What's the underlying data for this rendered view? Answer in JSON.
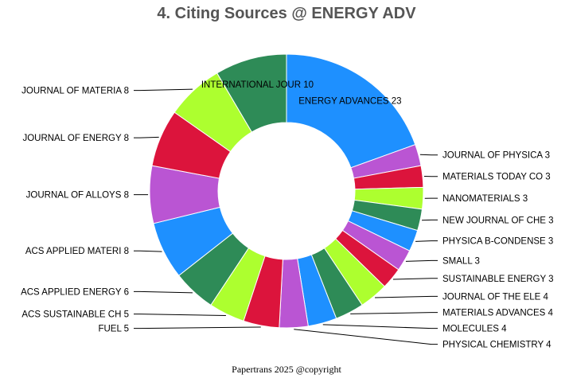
{
  "page": {
    "footer": "Papertrans 2025 @copyright"
  },
  "chart_data": {
    "type": "pie",
    "style": "donut",
    "title": "4. Citing Sources @ ENERGY ADV",
    "slices": [
      {
        "label": "ENERGY ADVANCES",
        "value": 23,
        "color": "#1e90ff"
      },
      {
        "label": "JOURNAL OF PHYSICA",
        "value": 3,
        "color": "#ba55d3"
      },
      {
        "label": "MATERIALS TODAY CO",
        "value": 3,
        "color": "#dc143c"
      },
      {
        "label": "NANOMATERIALS",
        "value": 3,
        "color": "#adff2f"
      },
      {
        "label": "NEW JOURNAL OF CHE",
        "value": 3,
        "color": "#2e8b57"
      },
      {
        "label": "PHYSICA B-CONDENSE",
        "value": 3,
        "color": "#1e90ff"
      },
      {
        "label": "SMALL",
        "value": 3,
        "color": "#ba55d3"
      },
      {
        "label": "SUSTAINABLE ENERGY",
        "value": 3,
        "color": "#dc143c"
      },
      {
        "label": "JOURNAL OF THE ELE",
        "value": 4,
        "color": "#adff2f"
      },
      {
        "label": "MATERIALS ADVANCES",
        "value": 4,
        "color": "#2e8b57"
      },
      {
        "label": "MOLECULES",
        "value": 4,
        "color": "#1e90ff"
      },
      {
        "label": "PHYSICAL CHEMISTRY",
        "value": 4,
        "color": "#ba55d3"
      },
      {
        "label": "FUEL",
        "value": 5,
        "color": "#dc143c"
      },
      {
        "label": "ACS SUSTAINABLE CH",
        "value": 5,
        "color": "#adff2f"
      },
      {
        "label": "ACS APPLIED ENERGY",
        "value": 6,
        "color": "#2e8b57"
      },
      {
        "label": "ACS APPLIED MATERI",
        "value": 8,
        "color": "#1e90ff"
      },
      {
        "label": "JOURNAL OF ALLOYS ",
        "value": 8,
        "color": "#ba55d3"
      },
      {
        "label": "JOURNAL OF ENERGY ",
        "value": 8,
        "color": "#dc143c"
      },
      {
        "label": "JOURNAL OF MATERIA",
        "value": 8,
        "color": "#adff2f"
      },
      {
        "label": "INTERNATIONAL JOUR",
        "value": 10,
        "color": "#2e8b57"
      }
    ],
    "legend": "none",
    "label_placement": "outside with leader lines; two largest inside"
  }
}
